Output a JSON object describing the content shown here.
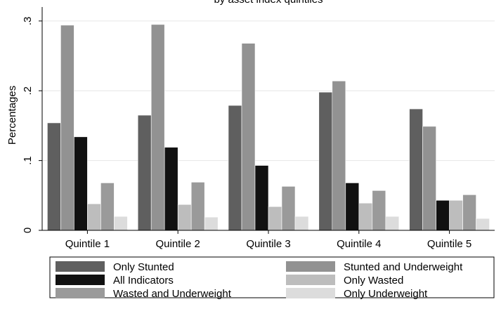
{
  "chart_data": {
    "type": "bar",
    "title": "by asset index quintiles",
    "ylabel": "Percentages",
    "xlabel": "",
    "ylim": [
      0,
      0.32
    ],
    "yticks": [
      {
        "value": 0,
        "label": "0"
      },
      {
        "value": 0.1,
        "label": ".1"
      },
      {
        "value": 0.2,
        "label": ".2"
      },
      {
        "value": 0.3,
        "label": ".3"
      }
    ],
    "categories": [
      "Quintile 1",
      "Quintile 2",
      "Quintile 3",
      "Quintile 4",
      "Quintile 5"
    ],
    "series": [
      {
        "name": "Only Stunted",
        "color": "#5f5f5f",
        "values": [
          0.154,
          0.165,
          0.179,
          0.198,
          0.174
        ]
      },
      {
        "name": "Stunted and Underweight",
        "color": "#929292",
        "values": [
          0.294,
          0.295,
          0.268,
          0.214,
          0.149
        ]
      },
      {
        "name": "All Indicators",
        "color": "#111111",
        "values": [
          0.134,
          0.119,
          0.093,
          0.068,
          0.043
        ]
      },
      {
        "name": "Only Wasted",
        "color": "#bdbdbd",
        "values": [
          0.038,
          0.037,
          0.034,
          0.039,
          0.043
        ]
      },
      {
        "name": "Wasted and Underweight",
        "color": "#9a9a9a",
        "values": [
          0.068,
          0.069,
          0.063,
          0.057,
          0.051
        ]
      },
      {
        "name": "Only Underweight",
        "color": "#dcdcdc",
        "values": [
          0.02,
          0.019,
          0.02,
          0.02,
          0.017
        ]
      }
    ],
    "legend": {
      "placement": "bottom",
      "columns": 2,
      "order": [
        "Only Stunted",
        "Stunted and Underweight",
        "All Indicators",
        "Only Wasted",
        "Wasted and Underweight",
        "Only Underweight"
      ]
    },
    "grid": "horizontal"
  }
}
